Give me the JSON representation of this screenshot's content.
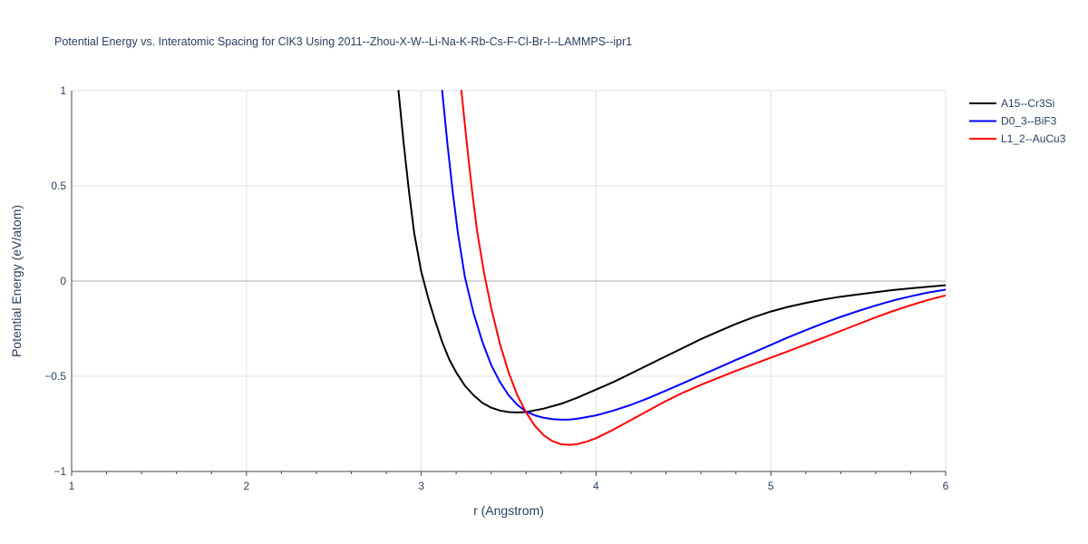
{
  "chart_data": {
    "type": "line",
    "title": "Potential Energy vs. Interatomic Spacing for ClK3 Using 2011--Zhou-X-W--Li-Na-K-Rb-Cs-F-Cl-Br-I--LAMMPS--ipr1",
    "xlabel": "r (Angstrom)",
    "ylabel": "Potential Energy (eV/atom)",
    "xlim": [
      1,
      6
    ],
    "ylim": [
      -1,
      1
    ],
    "xticks": [
      1,
      2,
      3,
      4,
      5,
      6
    ],
    "xtick_labels": [
      "1",
      "2",
      "3",
      "4",
      "5",
      "6"
    ],
    "yticks": [
      -1,
      -0.5,
      0,
      0.5,
      1
    ],
    "ytick_labels": [
      "−1",
      "−0.5",
      "0",
      "0.5",
      "1"
    ],
    "grid": true,
    "legend_position": "top-right",
    "series": [
      {
        "name": "A15--Cr3Si",
        "color": "#000000",
        "x": [
          2.87,
          2.9,
          2.93,
          2.96,
          3.0,
          3.04,
          3.08,
          3.12,
          3.16,
          3.2,
          3.25,
          3.3,
          3.35,
          3.4,
          3.45,
          3.5,
          3.55,
          3.6,
          3.7,
          3.8,
          3.9,
          4.0,
          4.1,
          4.2,
          4.3,
          4.4,
          4.5,
          4.6,
          4.7,
          4.8,
          4.9,
          5.0,
          5.1,
          5.2,
          5.3,
          5.4,
          5.5,
          5.6,
          5.7,
          5.8,
          5.9,
          6.0
        ],
        "y": [
          1.0,
          0.72,
          0.47,
          0.25,
          0.05,
          -0.09,
          -0.21,
          -0.32,
          -0.41,
          -0.48,
          -0.55,
          -0.6,
          -0.64,
          -0.665,
          -0.68,
          -0.688,
          -0.69,
          -0.688,
          -0.67,
          -0.645,
          -0.61,
          -0.57,
          -0.53,
          -0.485,
          -0.44,
          -0.395,
          -0.35,
          -0.305,
          -0.265,
          -0.225,
          -0.19,
          -0.16,
          -0.135,
          -0.115,
          -0.097,
          -0.082,
          -0.07,
          -0.058,
          -0.047,
          -0.038,
          -0.03,
          -0.022
        ]
      },
      {
        "name": "D0_3--BiF3",
        "color": "#0000ff",
        "x": [
          3.12,
          3.15,
          3.18,
          3.21,
          3.25,
          3.3,
          3.35,
          3.4,
          3.45,
          3.5,
          3.55,
          3.6,
          3.65,
          3.7,
          3.75,
          3.8,
          3.85,
          3.9,
          4.0,
          4.1,
          4.2,
          4.3,
          4.4,
          4.5,
          4.6,
          4.7,
          4.8,
          4.9,
          5.0,
          5.1,
          5.2,
          5.3,
          5.4,
          5.5,
          5.6,
          5.7,
          5.8,
          5.9,
          6.0
        ],
        "y": [
          1.0,
          0.72,
          0.47,
          0.25,
          0.02,
          -0.17,
          -0.32,
          -0.44,
          -0.53,
          -0.6,
          -0.65,
          -0.685,
          -0.705,
          -0.718,
          -0.725,
          -0.728,
          -0.727,
          -0.722,
          -0.705,
          -0.68,
          -0.65,
          -0.615,
          -0.575,
          -0.535,
          -0.495,
          -0.455,
          -0.415,
          -0.375,
          -0.335,
          -0.295,
          -0.258,
          -0.222,
          -0.188,
          -0.157,
          -0.128,
          -0.102,
          -0.08,
          -0.06,
          -0.045
        ]
      },
      {
        "name": "L1_2--AuCu3",
        "color": "#ff0000",
        "x": [
          3.23,
          3.26,
          3.29,
          3.32,
          3.36,
          3.4,
          3.45,
          3.5,
          3.55,
          3.6,
          3.65,
          3.7,
          3.75,
          3.8,
          3.85,
          3.9,
          3.95,
          4.0,
          4.1,
          4.2,
          4.3,
          4.4,
          4.5,
          4.6,
          4.7,
          4.8,
          4.9,
          5.0,
          5.1,
          5.2,
          5.3,
          5.4,
          5.5,
          5.6,
          5.7,
          5.8,
          5.9,
          6.0
        ],
        "y": [
          1.0,
          0.73,
          0.48,
          0.26,
          0.04,
          -0.14,
          -0.33,
          -0.48,
          -0.6,
          -0.69,
          -0.76,
          -0.81,
          -0.84,
          -0.857,
          -0.86,
          -0.855,
          -0.842,
          -0.825,
          -0.78,
          -0.73,
          -0.68,
          -0.63,
          -0.585,
          -0.545,
          -0.508,
          -0.472,
          -0.437,
          -0.402,
          -0.368,
          -0.333,
          -0.298,
          -0.262,
          -0.226,
          -0.19,
          -0.157,
          -0.127,
          -0.099,
          -0.075
        ]
      }
    ]
  }
}
